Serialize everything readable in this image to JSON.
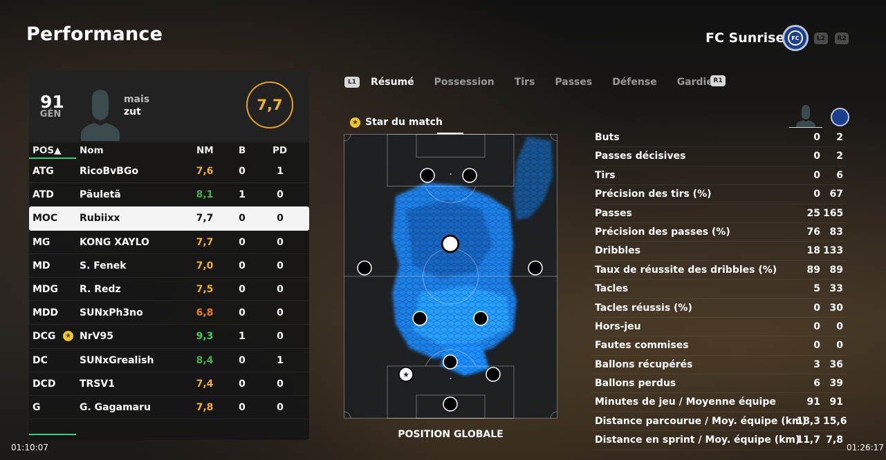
{
  "header": {
    "title": "Performance",
    "team_name": "FC Sunrise",
    "trigger_left": "L2",
    "trigger_right": "R2"
  },
  "player_card": {
    "gen_value": "91",
    "gen_label": "GÉN",
    "name_line1": "mais",
    "name_line2": "zut",
    "rating": "7,7"
  },
  "table": {
    "headers": {
      "pos": "POS▲",
      "name": "Nom",
      "nm": "NM",
      "b": "B",
      "pd": "PD"
    },
    "rows": [
      {
        "pos": "ATG",
        "name": "RicoBvBGo",
        "nm": "7,6",
        "b": "0",
        "pd": "1",
        "color": "#f2b133"
      },
      {
        "pos": "ATD",
        "name": "Pãuletã",
        "nm": "8,1",
        "b": "1",
        "pd": "0",
        "color": "#3fb24a"
      },
      {
        "pos": "MOC",
        "name": "Rubiixx",
        "nm": "7,7",
        "b": "0",
        "pd": "0",
        "color": "#111111"
      },
      {
        "pos": "MG",
        "name": "KONG XAYLO",
        "nm": "7,7",
        "b": "0",
        "pd": "0",
        "color": "#f2b133"
      },
      {
        "pos": "MD",
        "name": "S. Fenek",
        "nm": "7,0",
        "b": "0",
        "pd": "0",
        "color": "#f2b133"
      },
      {
        "pos": "MDG",
        "name": "R. Redz",
        "nm": "7,5",
        "b": "0",
        "pd": "0",
        "color": "#f2b133"
      },
      {
        "pos": "MDD",
        "name": "SUNxPh3no",
        "nm": "6,8",
        "b": "0",
        "pd": "0",
        "color": "#f07e1a"
      },
      {
        "pos": "DCG",
        "name": "NrV95",
        "nm": "9,3",
        "b": "1",
        "pd": "0",
        "color": "#44d05a",
        "star": true
      },
      {
        "pos": "DC",
        "name": "SUNxGrealish",
        "nm": "8,4",
        "b": "0",
        "pd": "1",
        "color": "#3fb24a"
      },
      {
        "pos": "DCD",
        "name": "TRSV1",
        "nm": "7,4",
        "b": "0",
        "pd": "0",
        "color": "#f2b133"
      },
      {
        "pos": "G",
        "name": "G. Gagamaru",
        "nm": "7,8",
        "b": "0",
        "pd": "0",
        "color": "#f2b133"
      }
    ],
    "selected_index": 2
  },
  "tabs": {
    "left_button": "L1",
    "right_button": "R1",
    "items": [
      "Résumé",
      "Possession",
      "Tirs",
      "Passes",
      "Défense",
      "Gardien"
    ],
    "active": 0
  },
  "pitch": {
    "star_label": "Star du match",
    "caption": "POSITION GLOBALE"
  },
  "stats": [
    {
      "label": "Buts",
      "player": "0",
      "team": "2"
    },
    {
      "label": "Passes décisives",
      "player": "0",
      "team": "2"
    },
    {
      "label": "Tirs",
      "player": "0",
      "team": "6"
    },
    {
      "label": "Précision des tirs (%)",
      "player": "0",
      "team": "67"
    },
    {
      "label": "Passes",
      "player": "25",
      "team": "165"
    },
    {
      "label": "Précision des passes (%)",
      "player": "76",
      "team": "83"
    },
    {
      "label": "Dribbles",
      "player": "18",
      "team": "133"
    },
    {
      "label": "Taux de réussite des dribbles (%)",
      "player": "89",
      "team": "89"
    },
    {
      "label": "Tacles",
      "player": "5",
      "team": "33"
    },
    {
      "label": "Tacles réussis (%)",
      "player": "0",
      "team": "30"
    },
    {
      "label": "Hors-jeu",
      "player": "0",
      "team": "0"
    },
    {
      "label": "Fautes commises",
      "player": "0",
      "team": "0"
    },
    {
      "label": "Ballons récupérés",
      "player": "3",
      "team": "36"
    },
    {
      "label": "Ballons perdus",
      "player": "6",
      "team": "39"
    },
    {
      "label": "Minutes de jeu / Moyenne équipe",
      "player": "91",
      "team": "91"
    },
    {
      "label": "Distance parcourue / Moy. équipe (km)",
      "player": "18,3",
      "team": "15,6"
    },
    {
      "label": "Distance en sprint / Moy. équipe (km)",
      "player": "11,7",
      "team": "7,8"
    }
  ],
  "footer": {
    "time_left": "01:10:07",
    "time_right": "01:26:17"
  },
  "colors": {
    "accent_green": "#2fd37a",
    "rating_gold": "#f2b133",
    "heat_blue": "#1f8fff"
  }
}
